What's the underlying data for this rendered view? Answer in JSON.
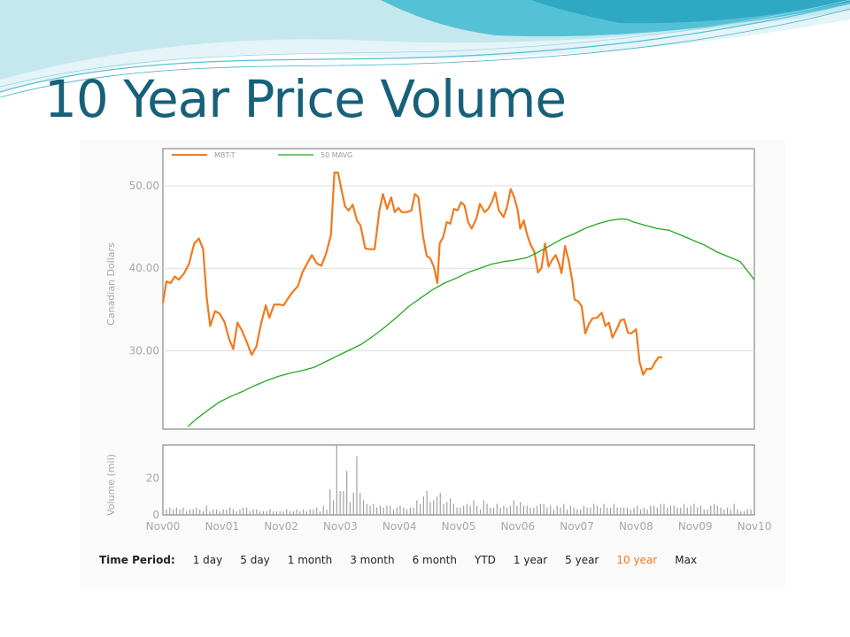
{
  "slide": {
    "title": "10 Year Price Volume"
  },
  "colors": {
    "price": "#f07a1e",
    "ma": "#22a822",
    "volume": "#a0a0a0",
    "grid": "#dddddd",
    "frame": "#a0a0a0",
    "title": "#17607a",
    "active": "#f07a1e"
  },
  "time_period": {
    "label": "Time Period:",
    "options": [
      "1 day",
      "5 day",
      "1 month",
      "3 month",
      "6 month",
      "YTD",
      "1 year",
      "5 year",
      "10 year",
      "Max"
    ],
    "active": "10 year"
  },
  "chart_data": [
    {
      "type": "line",
      "ylabel": "Canadian Dollars",
      "ylim": [
        20.5,
        54.5
      ],
      "yticks": [
        30,
        40,
        50
      ],
      "ytick_labels": [
        "30.00",
        "40.00",
        "50.00"
      ],
      "xlim": [
        2000.84,
        2010.84
      ],
      "grid": true,
      "legend_position": "top-left",
      "series": [
        {
          "name": "MBT-T",
          "points": [
            [
              2000.84,
              35.8
            ],
            [
              2000.9,
              38.4
            ],
            [
              2000.97,
              38.2
            ],
            [
              2001.04,
              39.0
            ],
            [
              2001.11,
              38.6
            ],
            [
              2001.2,
              39.4
            ],
            [
              2001.28,
              40.5
            ],
            [
              2001.37,
              43.0
            ],
            [
              2001.45,
              43.6
            ],
            [
              2001.52,
              42.3
            ],
            [
              2001.58,
              36.5
            ],
            [
              2001.64,
              33.0
            ],
            [
              2001.72,
              34.8
            ],
            [
              2001.8,
              34.5
            ],
            [
              2001.88,
              33.5
            ],
            [
              2001.96,
              31.4
            ],
            [
              2002.03,
              30.2
            ],
            [
              2002.1,
              33.4
            ],
            [
              2002.18,
              32.4
            ],
            [
              2002.26,
              31.0
            ],
            [
              2002.34,
              29.5
            ],
            [
              2002.42,
              30.5
            ],
            [
              2002.5,
              33.3
            ],
            [
              2002.58,
              35.5
            ],
            [
              2002.64,
              34.0
            ],
            [
              2002.72,
              35.6
            ],
            [
              2002.8,
              35.6
            ],
            [
              2002.88,
              35.5
            ],
            [
              2002.96,
              36.4
            ],
            [
              2003.04,
              37.2
            ],
            [
              2003.12,
              37.8
            ],
            [
              2003.2,
              39.5
            ],
            [
              2003.28,
              40.6
            ],
            [
              2003.36,
              41.6
            ],
            [
              2003.44,
              40.6
            ],
            [
              2003.52,
              40.3
            ],
            [
              2003.6,
              41.8
            ],
            [
              2003.68,
              44.0
            ],
            [
              2003.74,
              51.6
            ],
            [
              2003.8,
              51.6
            ],
            [
              2003.86,
              49.5
            ],
            [
              2003.92,
              47.5
            ],
            [
              2003.98,
              47.0
            ],
            [
              2004.05,
              47.7
            ],
            [
              2004.12,
              45.8
            ],
            [
              2004.18,
              45.2
            ],
            [
              2004.26,
              42.4
            ],
            [
              2004.34,
              42.3
            ],
            [
              2004.42,
              42.3
            ],
            [
              2004.5,
              47.0
            ],
            [
              2004.56,
              49.0
            ],
            [
              2004.63,
              47.2
            ],
            [
              2004.7,
              48.6
            ],
            [
              2004.76,
              46.8
            ],
            [
              2004.82,
              47.3
            ],
            [
              2004.88,
              46.8
            ],
            [
              2004.96,
              46.8
            ],
            [
              2005.04,
              47.0
            ],
            [
              2005.1,
              49.0
            ],
            [
              2005.16,
              48.6
            ],
            [
              2005.24,
              43.8
            ],
            [
              2005.3,
              41.5
            ],
            [
              2005.36,
              41.2
            ],
            [
              2005.42,
              40.2
            ],
            [
              2005.48,
              38.2
            ],
            [
              2005.52,
              43.0
            ],
            [
              2005.58,
              43.8
            ],
            [
              2005.64,
              45.6
            ],
            [
              2005.7,
              45.4
            ],
            [
              2005.76,
              47.2
            ],
            [
              2005.82,
              47.0
            ],
            [
              2005.88,
              48.0
            ],
            [
              2005.94,
              47.6
            ],
            [
              2006.0,
              45.6
            ],
            [
              2006.06,
              44.8
            ],
            [
              2006.14,
              46.0
            ],
            [
              2006.2,
              47.8
            ],
            [
              2006.28,
              46.8
            ],
            [
              2006.34,
              47.2
            ],
            [
              2006.4,
              48.0
            ],
            [
              2006.46,
              49.2
            ],
            [
              2006.52,
              47.0
            ],
            [
              2006.6,
              46.2
            ],
            [
              2006.66,
              47.5
            ],
            [
              2006.72,
              49.6
            ],
            [
              2006.78,
              48.6
            ],
            [
              2006.84,
              47.0
            ],
            [
              2006.88,
              44.8
            ],
            [
              2006.94,
              45.8
            ],
            [
              2007.0,
              44.0
            ],
            [
              2007.06,
              42.8
            ],
            [
              2007.12,
              42.0
            ],
            [
              2007.18,
              39.5
            ],
            [
              2007.24,
              40.0
            ],
            [
              2007.3,
              43.0
            ],
            [
              2007.36,
              40.2
            ],
            [
              2007.42,
              41.0
            ],
            [
              2007.48,
              41.6
            ],
            [
              2007.54,
              40.5
            ],
            [
              2007.58,
              39.4
            ],
            [
              2007.64,
              42.7
            ],
            [
              2007.7,
              41.0
            ],
            [
              2007.76,
              38.5
            ],
            [
              2007.8,
              36.2
            ],
            [
              2007.86,
              36.0
            ],
            [
              2007.92,
              35.4
            ],
            [
              2007.98,
              32.1
            ],
            [
              2008.04,
              33.2
            ],
            [
              2008.1,
              33.9
            ],
            [
              2008.18,
              34.0
            ],
            [
              2008.26,
              34.6
            ],
            [
              2008.32,
              33.0
            ],
            [
              2008.38,
              33.4
            ],
            [
              2008.44,
              31.6
            ],
            [
              2008.52,
              32.7
            ],
            [
              2008.58,
              33.7
            ],
            [
              2008.64,
              33.8
            ],
            [
              2008.7,
              32.2
            ],
            [
              2008.76,
              32.1
            ],
            [
              2008.84,
              32.6
            ],
            [
              2008.9,
              28.6
            ],
            [
              2008.96,
              27.1
            ],
            [
              2009.02,
              27.8
            ],
            [
              2009.1,
              27.8
            ],
            [
              2009.16,
              28.6
            ],
            [
              2009.22,
              29.2
            ],
            [
              2009.28,
              29.2
            ]
          ]
        },
        {
          "name": "50 MAVG",
          "points": [
            [
              2001.26,
              20.8
            ],
            [
              2001.4,
              21.7
            ],
            [
              2001.6,
              22.8
            ],
            [
              2001.8,
              23.8
            ],
            [
              2002.0,
              24.5
            ],
            [
              2002.2,
              25.1
            ],
            [
              2002.4,
              25.8
            ],
            [
              2002.6,
              26.4
            ],
            [
              2002.8,
              26.9
            ],
            [
              2003.0,
              27.3
            ],
            [
              2003.2,
              27.6
            ],
            [
              2003.4,
              28.0
            ],
            [
              2003.6,
              28.7
            ],
            [
              2003.8,
              29.4
            ],
            [
              2004.0,
              30.1
            ],
            [
              2004.2,
              30.8
            ],
            [
              2004.4,
              31.8
            ],
            [
              2004.6,
              32.9
            ],
            [
              2004.8,
              34.1
            ],
            [
              2005.0,
              35.4
            ],
            [
              2005.2,
              36.4
            ],
            [
              2005.4,
              37.4
            ],
            [
              2005.6,
              38.2
            ],
            [
              2005.8,
              38.8
            ],
            [
              2006.0,
              39.5
            ],
            [
              2006.2,
              40.0
            ],
            [
              2006.4,
              40.5
            ],
            [
              2006.6,
              40.8
            ],
            [
              2006.8,
              41.0
            ],
            [
              2007.0,
              41.3
            ],
            [
              2007.2,
              42.0
            ],
            [
              2007.4,
              42.8
            ],
            [
              2007.6,
              43.6
            ],
            [
              2007.8,
              44.2
            ],
            [
              2008.0,
              44.9
            ],
            [
              2008.2,
              45.4
            ],
            [
              2008.4,
              45.8
            ],
            [
              2008.6,
              46.0
            ],
            [
              2008.7,
              45.9
            ],
            [
              2008.8,
              45.6
            ],
            [
              2009.0,
              45.2
            ],
            [
              2009.2,
              44.8
            ],
            [
              2009.4,
              44.6
            ],
            [
              2009.6,
              44.0
            ],
            [
              2009.8,
              43.4
            ],
            [
              2010.0,
              42.8
            ],
            [
              2010.2,
              42.0
            ],
            [
              2010.4,
              41.4
            ],
            [
              2010.6,
              40.8
            ],
            [
              2010.84,
              38.6
            ]
          ]
        }
      ]
    },
    {
      "type": "bar",
      "ylabel": "Volume (mil)",
      "ylim": [
        0,
        38
      ],
      "yticks": [
        0,
        20
      ],
      "ytick_labels": [
        "0",
        "20"
      ],
      "xlim": [
        2000.84,
        2010.84
      ],
      "x_ticks": [
        2000.84,
        2001.84,
        2002.84,
        2003.84,
        2004.84,
        2005.84,
        2006.84,
        2007.84,
        2008.84,
        2009.84,
        2010.84
      ],
      "x_tick_labels": [
        "Nov00",
        "Nov01",
        "Nov02",
        "Nov03",
        "Nov04",
        "Nov05",
        "Nov06",
        "Nov07",
        "Nov08",
        "Nov09",
        "Nov10"
      ],
      "series": [
        {
          "name": "",
          "values": [
            3,
            4,
            3,
            4,
            3,
            4,
            2,
            3,
            3,
            4,
            3,
            2,
            5,
            2,
            3,
            3,
            2,
            3,
            3,
            4,
            3,
            2,
            3,
            4,
            4,
            2,
            3,
            3,
            2,
            2,
            2,
            3,
            2,
            2,
            2,
            2,
            3,
            2,
            2,
            3,
            2,
            3,
            2,
            3,
            3,
            4,
            2,
            5,
            3,
            14,
            8,
            38,
            13,
            13,
            24,
            7,
            12,
            32,
            12,
            8,
            6,
            5,
            6,
            4,
            5,
            4,
            5,
            5,
            3,
            4,
            5,
            4,
            3,
            4,
            4,
            8,
            6,
            10,
            13,
            7,
            8,
            10,
            12,
            6,
            7,
            9,
            6,
            4,
            4,
            5,
            6,
            5,
            8,
            5,
            3,
            8,
            6,
            4,
            4,
            6,
            4,
            5,
            4,
            5,
            8,
            5,
            7,
            5,
            5,
            4,
            4,
            5,
            6,
            6,
            4,
            5,
            3,
            5,
            4,
            6,
            3,
            5,
            4,
            3,
            3,
            5,
            4,
            4,
            6,
            5,
            4,
            6,
            4,
            4,
            6,
            4,
            4,
            4,
            4,
            3,
            4,
            5,
            3,
            4,
            3,
            5,
            5,
            4,
            6,
            6,
            4,
            5,
            5,
            4,
            4,
            6,
            4,
            5,
            6,
            4,
            5,
            3,
            3,
            5,
            6,
            5,
            4,
            3,
            4,
            3,
            6,
            3,
            2,
            2,
            3,
            3
          ]
        }
      ]
    }
  ]
}
